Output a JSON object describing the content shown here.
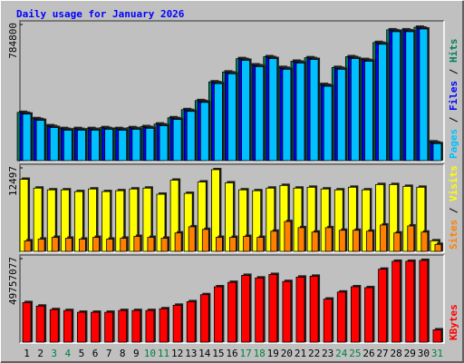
{
  "title": "Daily usage for January 2026",
  "legend_separator": " / ",
  "chart_data": [
    {
      "type": "bar",
      "ylim": [
        0,
        784800
      ],
      "yticks": [
        784800
      ],
      "series": [
        {
          "name": "Hits",
          "color": "#00805c",
          "values": [
            278000,
            242000,
            201000,
            185000,
            185000,
            185000,
            190000,
            185000,
            190000,
            196000,
            211000,
            247000,
            294000,
            346000,
            454000,
            511000,
            588000,
            552000,
            599000,
            537000,
            573000,
            593000,
            439000,
            537000,
            599000,
            583000,
            681000,
            754000,
            754000,
            769000,
            108000
          ]
        },
        {
          "name": "Files",
          "color": "#0000ff",
          "values": [
            273000,
            237000,
            196000,
            180000,
            180000,
            180000,
            185000,
            180000,
            185000,
            191000,
            206000,
            242000,
            289000,
            341000,
            449000,
            506000,
            583000,
            547000,
            594000,
            532000,
            568000,
            588000,
            434000,
            532000,
            594000,
            578000,
            676000,
            749000,
            749000,
            764000,
            103000
          ]
        },
        {
          "name": "Pages",
          "color": "#00c0ff",
          "values": [
            268500,
            232300,
            191000,
            175500,
            175500,
            175500,
            180700,
            175500,
            180700,
            185900,
            201400,
            237500,
            284000,
            335600,
            444000,
            500800,
            578300,
            542100,
            588600,
            526600,
            562800,
            583400,
            428500,
            526600,
            588600,
            573100,
            671200,
            743500,
            743500,
            759000,
            98100
          ]
        }
      ]
    },
    {
      "type": "bar",
      "ylim": [
        0,
        12497
      ],
      "yticks": [
        12497
      ],
      "series": [
        {
          "name": "Visits",
          "color": "#ffff00",
          "values": [
            10790,
            9470,
            9210,
            9210,
            8950,
            9340,
            8950,
            9080,
            9340,
            9470,
            8550,
            10660,
            8680,
            10390,
            12230,
            10260,
            9210,
            9080,
            9470,
            9870,
            9470,
            9600,
            9340,
            9210,
            9600,
            9210,
            10000,
            10000,
            9730,
            9600,
            1580
          ]
        },
        {
          "name": "Sites",
          "color": "#ff8000",
          "values": [
            1580,
            1840,
            2100,
            1970,
            1840,
            2100,
            1840,
            1970,
            2240,
            2100,
            1970,
            2760,
            3680,
            3290,
            2100,
            2100,
            2240,
            2100,
            3020,
            4470,
            3550,
            2890,
            3550,
            3160,
            3160,
            3020,
            3950,
            2760,
            3810,
            2890,
            1050
          ]
        }
      ]
    },
    {
      "type": "bar",
      "ylim": [
        0,
        49757077
      ],
      "yticks": [
        49757077
      ],
      "categories": [
        "1",
        "2",
        "3",
        "4",
        "5",
        "6",
        "7",
        "8",
        "9",
        "10",
        "11",
        "12",
        "13",
        "14",
        "15",
        "16",
        "17",
        "18",
        "19",
        "20",
        "21",
        "22",
        "23",
        "24",
        "25",
        "26",
        "27",
        "28",
        "29",
        "30",
        "31"
      ],
      "category_colors": [
        "#000000",
        "#000000",
        "#008040",
        "#008040",
        "#000000",
        "#000000",
        "#000000",
        "#000000",
        "#000000",
        "#008040",
        "#008040",
        "#000000",
        "#000000",
        "#000000",
        "#000000",
        "#000000",
        "#008040",
        "#008040",
        "#000000",
        "#000000",
        "#000000",
        "#000000",
        "#000000",
        "#008040",
        "#008040",
        "#000000",
        "#000000",
        "#000000",
        "#000000",
        "#000000",
        "#008040"
      ],
      "series": [
        {
          "name": "KBytes",
          "color": "#ff0000",
          "values": [
            23569000,
            21474000,
            19379000,
            18855000,
            17808000,
            17808000,
            17808000,
            18855000,
            18855000,
            18855000,
            19903000,
            21998000,
            24093000,
            28283000,
            32997000,
            35616000,
            39806000,
            38234000,
            40329000,
            36139000,
            38758000,
            39282000,
            25664000,
            29854000,
            32997000,
            32473000,
            43472000,
            48186000,
            48186000,
            48710000,
            7333000
          ]
        }
      ]
    }
  ]
}
